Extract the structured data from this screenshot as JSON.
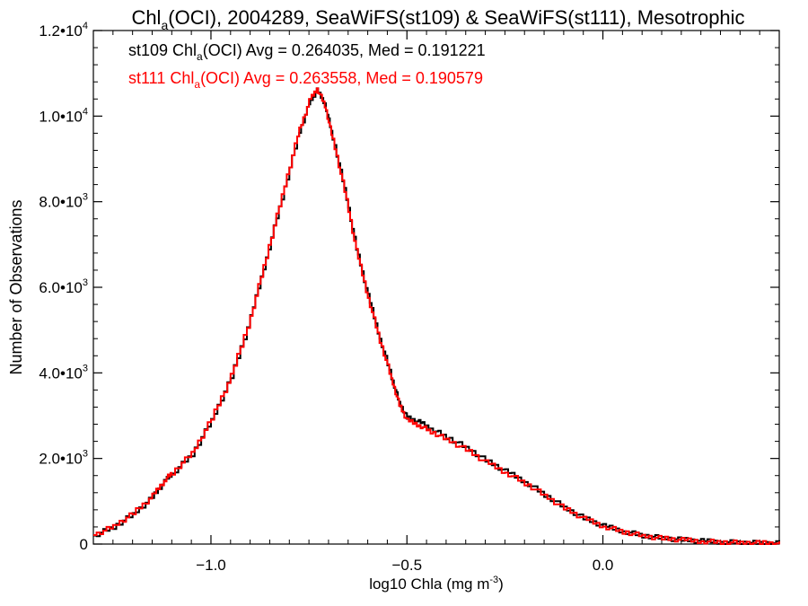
{
  "chart_data": {
    "type": "line",
    "title": {
      "pre": "Chl",
      "sub": "a",
      "post": "(OCI), 2004289, SeaWiFS(st109) & SeaWiFS(st111), Mesotrophic"
    },
    "xlabel": {
      "pre": "log10 Chla (mg m",
      "sup": "-3",
      "post": ")"
    },
    "ylabel": "Number of Observations",
    "xlim": [
      -1.3,
      0.45
    ],
    "ylim": [
      0,
      12000
    ],
    "x_ticks": [
      {
        "value": -1.0,
        "label": "−1.0"
      },
      {
        "value": -0.5,
        "label": "−0.5"
      },
      {
        "value": 0.0,
        "label": "0.0"
      }
    ],
    "y_ticks": [
      {
        "value": 0,
        "mant": "0",
        "exp": ""
      },
      {
        "value": 2000,
        "mant": "2.0•10",
        "exp": "3"
      },
      {
        "value": 4000,
        "mant": "4.0•10",
        "exp": "3"
      },
      {
        "value": 6000,
        "mant": "6.0•10",
        "exp": "3"
      },
      {
        "value": 8000,
        "mant": "8.0•10",
        "exp": "3"
      },
      {
        "value": 10000,
        "mant": "1.0•10",
        "exp": "4"
      },
      {
        "value": 12000,
        "mant": "1.2•10",
        "exp": "4"
      }
    ],
    "grid": false,
    "legend_placement": "top-left",
    "series": [
      {
        "color": "#000000",
        "legend": {
          "pre": "st109 Chl",
          "sub": "a",
          "post": "(OCI) Avg = 0.264035, Med = 0.191221"
        },
        "x": [
          -1.3,
          -1.25,
          -1.2,
          -1.15,
          -1.12,
          -1.1,
          -1.05,
          -1.0,
          -0.95,
          -0.9,
          -0.86,
          -0.82,
          -0.78,
          -0.75,
          -0.73,
          -0.71,
          -0.69,
          -0.66,
          -0.63,
          -0.6,
          -0.57,
          -0.54,
          -0.52,
          -0.5,
          -0.47,
          -0.44,
          -0.4,
          -0.35,
          -0.3,
          -0.25,
          -0.2,
          -0.15,
          -0.1,
          -0.05,
          0.0,
          0.05,
          0.1,
          0.15,
          0.2,
          0.25,
          0.3,
          0.35,
          0.4,
          0.45
        ],
        "y": [
          200,
          400,
          700,
          1100,
          1450,
          1650,
          2100,
          2900,
          3900,
          5300,
          6700,
          8100,
          9500,
          10300,
          10600,
          10300,
          9500,
          8300,
          6900,
          5800,
          4800,
          3900,
          3300,
          2950,
          2850,
          2700,
          2500,
          2250,
          1950,
          1700,
          1450,
          1150,
          850,
          600,
          420,
          300,
          200,
          140,
          100,
          70,
          50,
          35,
          25,
          15
        ]
      },
      {
        "color": "#ff0000",
        "legend": {
          "pre": "st111 Chl",
          "sub": "a",
          "post": "(OCI) Avg = 0.263558, Med = 0.190579"
        },
        "x": [
          -1.3,
          -1.25,
          -1.2,
          -1.15,
          -1.12,
          -1.1,
          -1.05,
          -1.0,
          -0.95,
          -0.9,
          -0.86,
          -0.82,
          -0.78,
          -0.75,
          -0.73,
          -0.71,
          -0.69,
          -0.66,
          -0.63,
          -0.6,
          -0.57,
          -0.54,
          -0.52,
          -0.5,
          -0.47,
          -0.44,
          -0.4,
          -0.35,
          -0.3,
          -0.25,
          -0.2,
          -0.15,
          -0.1,
          -0.05,
          0.0,
          0.05,
          0.1,
          0.15,
          0.2,
          0.25,
          0.3,
          0.35,
          0.4,
          0.45
        ],
        "y": [
          210,
          420,
          720,
          1130,
          1480,
          1670,
          2130,
          2930,
          3930,
          5330,
          6730,
          8150,
          9550,
          10350,
          10650,
          10250,
          9450,
          8250,
          6850,
          5750,
          4750,
          3850,
          3250,
          2880,
          2780,
          2630,
          2440,
          2200,
          1910,
          1670,
          1420,
          1130,
          830,
          590,
          410,
          290,
          190,
          130,
          95,
          65,
          45,
          32,
          22,
          12
        ]
      }
    ]
  }
}
